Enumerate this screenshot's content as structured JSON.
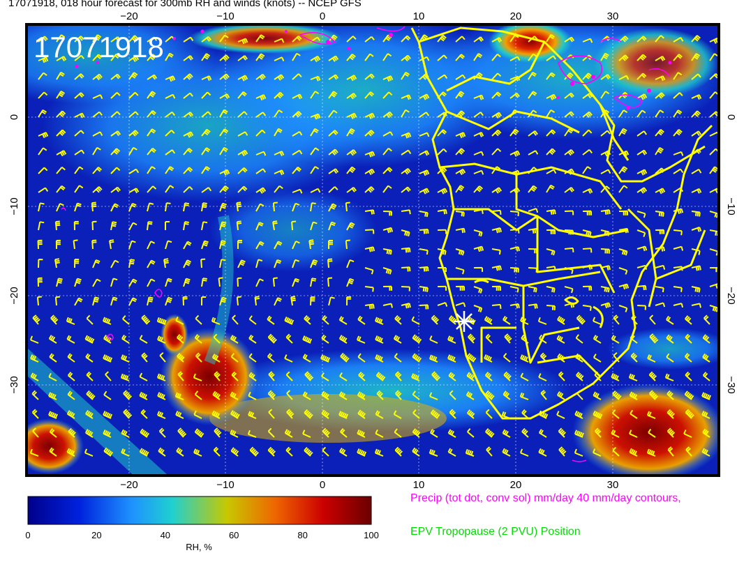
{
  "title": "17071918, 018 hour forecast for 300mb RH and winds (knots) -- NCEP GFS",
  "date_stamp": "17071918",
  "lon_ticks": [
    "−20",
    "−10",
    "0",
    "10",
    "20",
    "30"
  ],
  "lat_ticks": [
    "0",
    "−10",
    "−20",
    "−30"
  ],
  "colorbar": {
    "ticks": [
      "0",
      "20",
      "40",
      "60",
      "80",
      "100"
    ],
    "label": "RH, %",
    "colors": [
      "#00008b",
      "#0022dd",
      "#1e90ff",
      "#20d0d0",
      "#c8c800",
      "#ee6600",
      "#cc0000",
      "#6b0000"
    ]
  },
  "captions": {
    "precip": "Precip (tot dot, conv sol) mm/day 40 mm/day contours,",
    "tropopause": "EPV Tropopause (2 PVU) Position"
  },
  "colors": {
    "coast": "#ffff00",
    "precip": "#ff00ff",
    "marker": "#ffffff"
  }
}
